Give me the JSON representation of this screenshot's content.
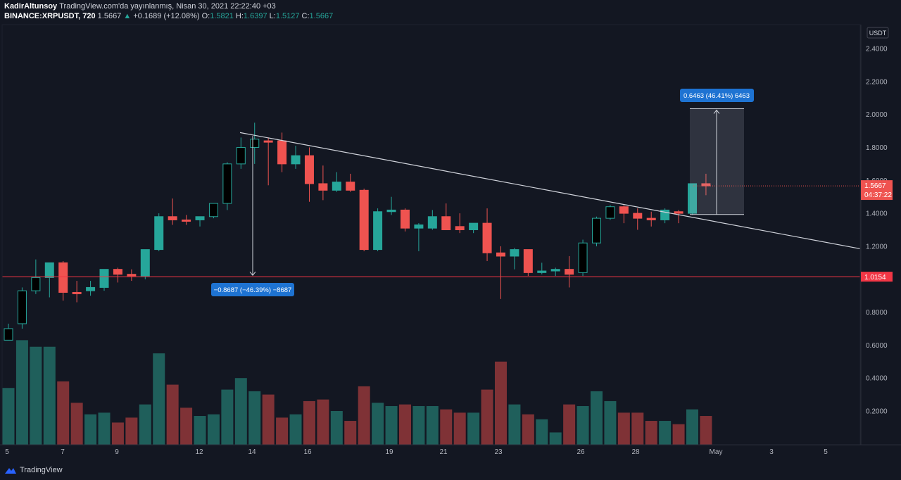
{
  "header": {
    "author": "KadirAltunsoy",
    "published_text": "TradingView.com'da yayınlanmış, Nisan 30, 2021 22:22:40 +03",
    "symbol": "BINANCE:XRPUSDT, 720",
    "last": "1.5667",
    "change": "+0.1689 (+12.08%)",
    "o_label": "O:",
    "o_value": "1.5821",
    "h_label": "H:",
    "h_value": "1.6397",
    "l_label": "L:",
    "l_value": "1.5127",
    "c_label": "C:",
    "c_value": "1.5667"
  },
  "footer": {
    "brand": "TradingView"
  },
  "chart_data": {
    "type": "candlestick",
    "currency_label": "USDT",
    "y_axis_ticks": [
      "2.4000",
      "2.2000",
      "2.0000",
      "1.8000",
      "1.6000",
      "1.4000",
      "1.2000",
      "0.8000",
      "0.6000",
      "0.4000",
      "0.2000"
    ],
    "ylim": [
      0.0,
      2.5
    ],
    "x_axis_labels": [
      "5",
      "7",
      "9",
      "12",
      "14",
      "16",
      "19",
      "21",
      "23",
      "26",
      "28",
      "May",
      "3",
      "5"
    ],
    "current_price_label": "1.5667",
    "countdown_label": "04:37:22",
    "horizontal_level": {
      "value": 1.0154,
      "label": "1.0154",
      "color": "#f23645"
    },
    "trendline": {
      "from": [
        2.0,
        1.89
      ],
      "to": [
        15.8,
        1.185
      ]
    },
    "measure_down": {
      "label": "−0.8687 (−46.39%) −8687",
      "from_y": 1.87,
      "to_y": 1.015
    },
    "measure_up": {
      "label": "0.6463 (46.41%) 6463",
      "from_y": 1.393,
      "to_y": 2.035
    },
    "colors": {
      "up": "#26a69a",
      "down": "#ef5350",
      "black_up": "#000000"
    },
    "candles": [
      {
        "o": 0.63,
        "h": 0.73,
        "l": 0.63,
        "c": 0.7,
        "style": "black"
      },
      {
        "o": 0.73,
        "h": 0.95,
        "l": 0.7,
        "c": 0.93,
        "style": "black"
      },
      {
        "o": 0.93,
        "h": 1.12,
        "l": 0.91,
        "c": 1.01,
        "style": "black"
      },
      {
        "o": 1.01,
        "h": 1.1,
        "l": 0.89,
        "c": 1.1,
        "style": "up"
      },
      {
        "o": 1.1,
        "h": 1.11,
        "l": 0.87,
        "c": 0.92,
        "style": "down"
      },
      {
        "o": 0.92,
        "h": 0.99,
        "l": 0.86,
        "c": 0.92,
        "style": "down"
      },
      {
        "o": 0.93,
        "h": 0.99,
        "l": 0.9,
        "c": 0.95,
        "style": "up"
      },
      {
        "o": 0.95,
        "h": 1.06,
        "l": 0.93,
        "c": 1.06,
        "style": "up"
      },
      {
        "o": 1.06,
        "h": 1.07,
        "l": 0.98,
        "c": 1.03,
        "style": "down"
      },
      {
        "o": 1.03,
        "h": 1.06,
        "l": 0.99,
        "c": 1.02,
        "style": "down"
      },
      {
        "o": 1.02,
        "h": 1.18,
        "l": 1.0,
        "c": 1.18,
        "style": "up"
      },
      {
        "o": 1.18,
        "h": 1.4,
        "l": 1.17,
        "c": 1.38,
        "style": "up"
      },
      {
        "o": 1.38,
        "h": 1.49,
        "l": 1.33,
        "c": 1.36,
        "style": "down"
      },
      {
        "o": 1.36,
        "h": 1.39,
        "l": 1.33,
        "c": 1.36,
        "style": "down"
      },
      {
        "o": 1.36,
        "h": 1.38,
        "l": 1.32,
        "c": 1.38,
        "style": "up"
      },
      {
        "o": 1.38,
        "h": 1.46,
        "l": 1.37,
        "c": 1.46,
        "style": "black"
      },
      {
        "o": 1.46,
        "h": 1.71,
        "l": 1.42,
        "c": 1.7,
        "style": "black"
      },
      {
        "o": 1.7,
        "h": 1.86,
        "l": 1.67,
        "c": 1.8,
        "style": "black"
      },
      {
        "o": 1.8,
        "h": 1.95,
        "l": 1.7,
        "c": 1.85,
        "style": "black"
      },
      {
        "o": 1.84,
        "h": 1.86,
        "l": 1.57,
        "c": 1.84,
        "style": "down"
      },
      {
        "o": 1.84,
        "h": 1.89,
        "l": 1.65,
        "c": 1.7,
        "style": "down"
      },
      {
        "o": 1.7,
        "h": 1.81,
        "l": 1.67,
        "c": 1.75,
        "style": "up"
      },
      {
        "o": 1.75,
        "h": 1.8,
        "l": 1.47,
        "c": 1.58,
        "style": "down"
      },
      {
        "o": 1.58,
        "h": 1.69,
        "l": 1.48,
        "c": 1.54,
        "style": "down"
      },
      {
        "o": 1.54,
        "h": 1.65,
        "l": 1.53,
        "c": 1.59,
        "style": "up"
      },
      {
        "o": 1.59,
        "h": 1.64,
        "l": 1.53,
        "c": 1.54,
        "style": "down"
      },
      {
        "o": 1.54,
        "h": 1.55,
        "l": 1.17,
        "c": 1.18,
        "style": "down"
      },
      {
        "o": 1.18,
        "h": 1.43,
        "l": 1.17,
        "c": 1.41,
        "style": "up"
      },
      {
        "o": 1.41,
        "h": 1.5,
        "l": 1.39,
        "c": 1.42,
        "style": "up"
      },
      {
        "o": 1.42,
        "h": 1.43,
        "l": 1.29,
        "c": 1.31,
        "style": "down"
      },
      {
        "o": 1.31,
        "h": 1.34,
        "l": 1.17,
        "c": 1.33,
        "style": "up"
      },
      {
        "o": 1.31,
        "h": 1.42,
        "l": 1.3,
        "c": 1.38,
        "style": "up"
      },
      {
        "o": 1.38,
        "h": 1.46,
        "l": 1.3,
        "c": 1.3,
        "style": "down"
      },
      {
        "o": 1.3,
        "h": 1.4,
        "l": 1.28,
        "c": 1.32,
        "style": "down"
      },
      {
        "o": 1.3,
        "h": 1.34,
        "l": 1.28,
        "c": 1.34,
        "style": "up"
      },
      {
        "o": 1.34,
        "h": 1.43,
        "l": 1.11,
        "c": 1.16,
        "style": "down"
      },
      {
        "o": 1.16,
        "h": 1.2,
        "l": 0.88,
        "c": 1.14,
        "style": "down"
      },
      {
        "o": 1.14,
        "h": 1.19,
        "l": 1.06,
        "c": 1.18,
        "style": "up"
      },
      {
        "o": 1.18,
        "h": 1.18,
        "l": 1.02,
        "c": 1.04,
        "style": "down"
      },
      {
        "o": 1.04,
        "h": 1.1,
        "l": 1.03,
        "c": 1.05,
        "style": "up"
      },
      {
        "o": 1.05,
        "h": 1.07,
        "l": 1.02,
        "c": 1.06,
        "style": "up"
      },
      {
        "o": 1.06,
        "h": 1.14,
        "l": 0.95,
        "c": 1.03,
        "style": "down"
      },
      {
        "o": 1.04,
        "h": 1.24,
        "l": 1.02,
        "c": 1.22,
        "style": "black"
      },
      {
        "o": 1.22,
        "h": 1.38,
        "l": 1.2,
        "c": 1.37,
        "style": "black"
      },
      {
        "o": 1.37,
        "h": 1.45,
        "l": 1.36,
        "c": 1.44,
        "style": "black"
      },
      {
        "o": 1.44,
        "h": 1.45,
        "l": 1.34,
        "c": 1.4,
        "style": "down"
      },
      {
        "o": 1.4,
        "h": 1.43,
        "l": 1.3,
        "c": 1.37,
        "style": "down"
      },
      {
        "o": 1.37,
        "h": 1.41,
        "l": 1.32,
        "c": 1.36,
        "style": "down"
      },
      {
        "o": 1.36,
        "h": 1.43,
        "l": 1.34,
        "c": 1.42,
        "style": "up"
      },
      {
        "o": 1.41,
        "h": 1.42,
        "l": 1.34,
        "c": 1.4,
        "style": "down"
      },
      {
        "o": 1.4,
        "h": 1.58,
        "l": 1.39,
        "c": 1.58,
        "style": "up"
      },
      {
        "o": 1.58,
        "h": 1.64,
        "l": 1.51,
        "c": 1.5667,
        "style": "down"
      }
    ],
    "volume": {
      "note": "relative bar heights on price scale",
      "values": [
        0.34,
        0.63,
        0.59,
        0.59,
        0.38,
        0.25,
        0.18,
        0.19,
        0.13,
        0.16,
        0.24,
        0.55,
        0.36,
        0.22,
        0.17,
        0.18,
        0.33,
        0.4,
        0.32,
        0.3,
        0.16,
        0.18,
        0.26,
        0.27,
        0.2,
        0.14,
        0.35,
        0.25,
        0.23,
        0.24,
        0.23,
        0.23,
        0.21,
        0.19,
        0.19,
        0.33,
        0.5,
        0.24,
        0.18,
        0.15,
        0.07,
        0.24,
        0.23,
        0.32,
        0.26,
        0.19,
        0.19,
        0.14,
        0.14,
        0.12,
        0.21,
        0.17
      ],
      "colors": [
        "up",
        "up",
        "up",
        "up",
        "down",
        "down",
        "up",
        "up",
        "down",
        "down",
        "up",
        "up",
        "down",
        "down",
        "up",
        "up",
        "up",
        "up",
        "up",
        "down",
        "down",
        "up",
        "down",
        "down",
        "up",
        "down",
        "down",
        "up",
        "up",
        "down",
        "up",
        "up",
        "down",
        "down",
        "up",
        "down",
        "down",
        "up",
        "down",
        "up",
        "up",
        "down",
        "up",
        "up",
        "up",
        "down",
        "down",
        "down",
        "up",
        "down",
        "up",
        "down"
      ]
    }
  }
}
